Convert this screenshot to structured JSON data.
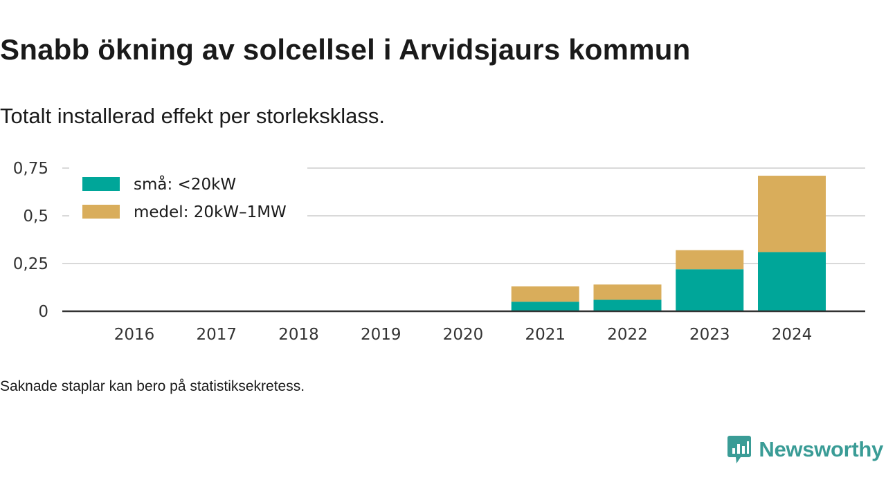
{
  "title": "Snabb ökning av solcellsel i Arvidsjaurs kommun",
  "subtitle": "Totalt installerad effekt per storleksklass.",
  "footnote": "Saknade staplar kan bero på statistiksekretess.",
  "brand": {
    "name": "Newsworthy",
    "color": "#3a9c96",
    "icon": "newsworthy-chart-bubble-icon"
  },
  "chart_data": {
    "type": "bar",
    "stacked": true,
    "title": "",
    "xlabel": "",
    "ylabel": "",
    "categories": [
      "2016",
      "2017",
      "2018",
      "2019",
      "2020",
      "2021",
      "2022",
      "2023",
      "2024"
    ],
    "series": [
      {
        "name": "små: <20kW",
        "color": "#00a699",
        "values": [
          null,
          null,
          null,
          null,
          null,
          0.05,
          0.06,
          0.22,
          0.31
        ]
      },
      {
        "name": "medel: 20kW–1MW",
        "color": "#d9ad5b",
        "values": [
          null,
          null,
          null,
          null,
          null,
          0.08,
          0.08,
          0.1,
          0.4
        ]
      }
    ],
    "ylim": [
      0,
      0.75
    ],
    "yticks": [
      0,
      0.25,
      0.5,
      0.75
    ],
    "ytick_labels": [
      "0",
      "0,25",
      "0,5",
      "0,75"
    ],
    "grid": "horizontal",
    "legend_position": "top-left"
  }
}
